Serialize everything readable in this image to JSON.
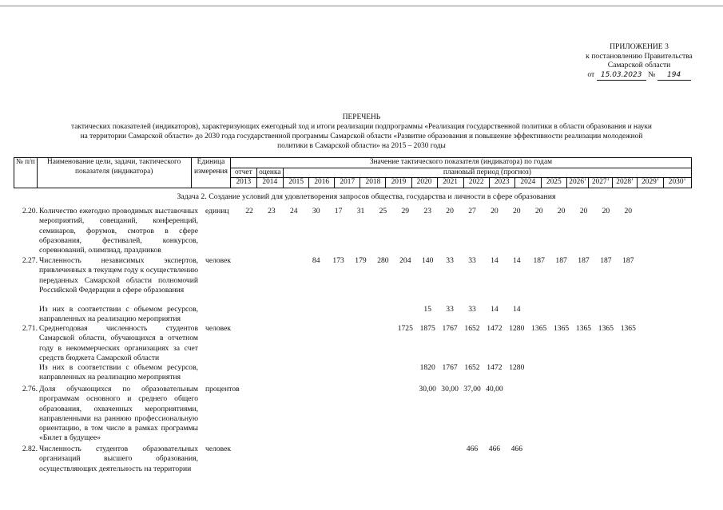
{
  "appendix": {
    "line1": "ПРИЛОЖЕНИЕ 3",
    "line2": "к постановлению Правительства",
    "line3": "Самарской области",
    "from": "от",
    "date": "15.03.2023",
    "no": "№",
    "number": "194"
  },
  "title": {
    "line1": "ПЕРЕЧЕНЬ",
    "line2": "тактических показателей (индикаторов), характеризующих ежегодный ход и итоги реализации подпрограммы «Реализация государственной политики в области образования и науки",
    "line3": "на территории Самарской области» до 2030 года государственной программы Самарской области «Развитие образования и повышение эффективности реализации молодежной",
    "line4": "политики в Самарской области» на 2015 – 2030 годы"
  },
  "header": {
    "num": "№ п/п",
    "name": "Наименование цели, задачи, тактического показателя (индикатора)",
    "unit": "Единица измерения",
    "values": "Значение тактического показателя (индикатора) по годам",
    "report": "отчет",
    "estimate": "оценка",
    "planned": "плановый период (прогноз)",
    "years": [
      "2013",
      "2014",
      "2015",
      "2016",
      "2017",
      "2018",
      "2019",
      "2020",
      "2021",
      "2022",
      "2023",
      "2024",
      "2025",
      "2026",
      "2027",
      "2028",
      "2029",
      "2030"
    ],
    "footnote_mark": "1"
  },
  "task": "Задача 2. Создание условий для удовлетворения запросов общества, государства и личности в сфере образования",
  "rows": [
    {
      "num": "2.20.",
      "name": "Количество ежегодно проводимых выставочных мероприятий, совещаний, конференций, семинаров, форумов, смотров в сфере образования, фестивалей, конкурсов, соревнований, олимпиад, праздников",
      "unit": "единиц",
      "values": [
        "22",
        "23",
        "24",
        "30",
        "17",
        "31",
        "25",
        "29",
        "23",
        "20",
        "27",
        "20",
        "20",
        "20",
        "20",
        "20",
        "20",
        "20"
      ]
    },
    {
      "num": "2.27.",
      "name": "Численность независимых экспертов, привлеченных в текущем году к осуществлению переданных Самарской области полномочий Российской Федерации в сфере образования",
      "unit": "человек",
      "values": [
        "",
        "",
        "",
        "84",
        "173",
        "179",
        "280",
        "204",
        "140",
        "33",
        "33",
        "14",
        "14",
        "187",
        "187",
        "187",
        "187",
        "187"
      ]
    },
    {
      "num": "",
      "name": "Из них в соответствии с объемом ресурсов, направленных на реализацию мероприятия",
      "unit": "",
      "values": [
        "",
        "",
        "",
        "",
        "",
        "",
        "",
        "",
        "15",
        "33",
        "33",
        "14",
        "14",
        "",
        "",
        "",
        "",
        ""
      ]
    },
    {
      "num": "2.71.",
      "name": "Среднегодовая численность студентов Самарской области, обучающихся в отчетном году в некоммерческих организациях за счет средств бюджета Самарской области",
      "unit": "человек",
      "values": [
        "",
        "",
        "",
        "",
        "",
        "",
        "",
        "1725",
        "1875",
        "1767",
        "1652",
        "1472",
        "1280",
        "1365",
        "1365",
        "1365",
        "1365",
        "1365"
      ]
    },
    {
      "num": "",
      "name": "Из них в соответствии с объемом ресурсов, направленных на реализацию мероприятия",
      "unit": "",
      "values": [
        "",
        "",
        "",
        "",
        "",
        "",
        "",
        "",
        "1820",
        "1767",
        "1652",
        "1472",
        "1280",
        "",
        "",
        "",
        "",
        ""
      ]
    },
    {
      "num": "2.76.",
      "name": "Доля обучающихся по образовательным программам основного и среднего общего образования, охваченных мероприятиями, направленными на раннюю профессиональную ориентацию, в том числе в рамках программы «Билет в будущее»",
      "unit": "процентов",
      "values": [
        "",
        "",
        "",
        "",
        "",
        "",
        "",
        "",
        "30,00",
        "30,00",
        "37,00",
        "40,00",
        "",
        "",
        "",
        "",
        "",
        ""
      ]
    },
    {
      "num": "2.82.",
      "name": "Численность студентов образовательных организаций высшего образования, осуществляющих деятельность на территории",
      "unit": "человек",
      "values": [
        "",
        "",
        "",
        "",
        "",
        "",
        "",
        "",
        "",
        "",
        "466",
        "466",
        "466",
        "",
        "",
        "",
        "",
        ""
      ]
    }
  ]
}
